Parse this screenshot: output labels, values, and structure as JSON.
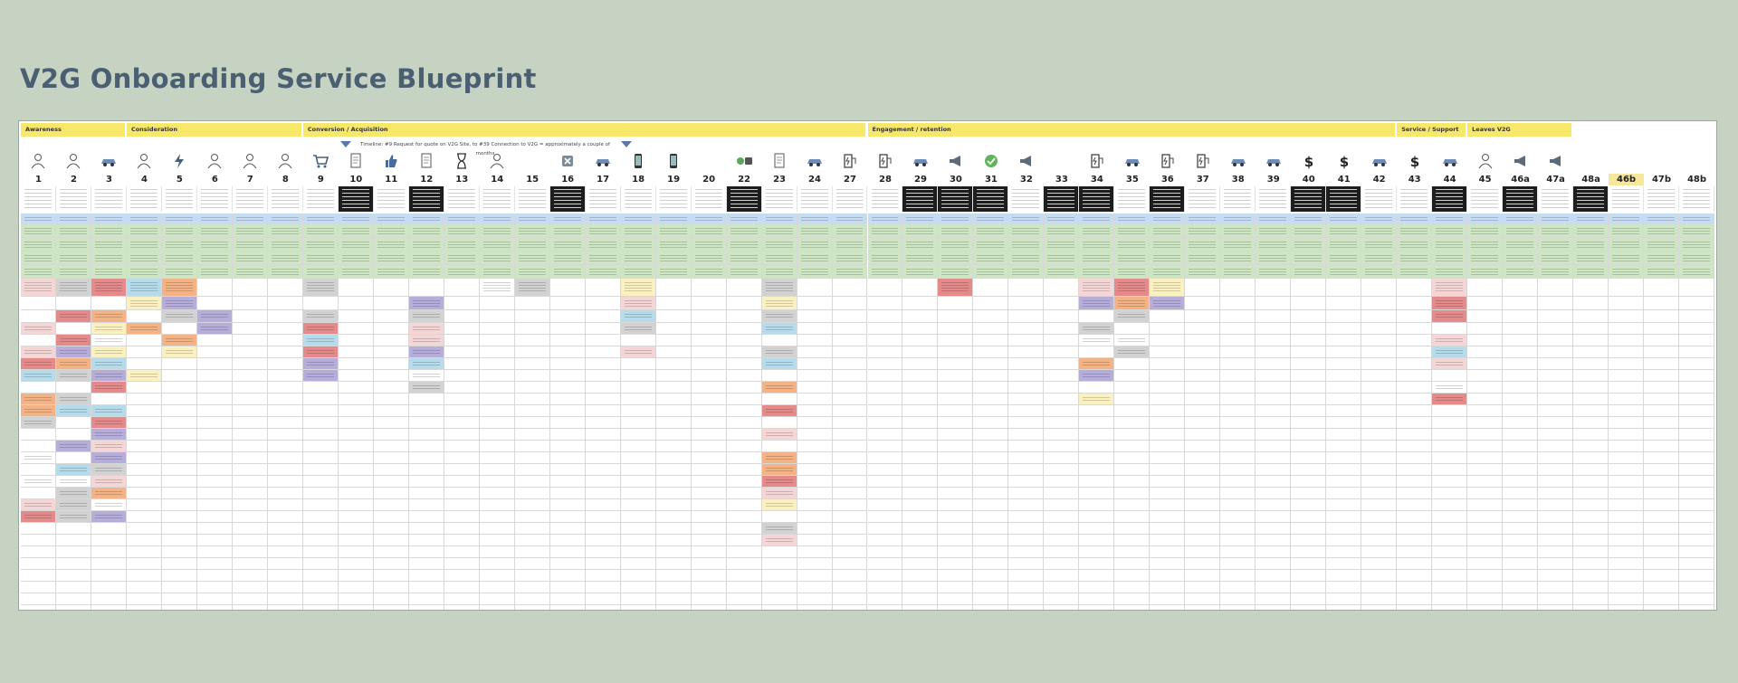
{
  "title": "V2G Onboarding Service Blueprint",
  "phases": [
    {
      "label": "Awareness",
      "start": 0,
      "span": 3
    },
    {
      "label": "Consideration",
      "start": 3,
      "span": 5
    },
    {
      "label": "Conversion / Acquisition",
      "start": 8,
      "span": 16
    },
    {
      "label": "Engagement / retention",
      "start": 24,
      "span": 15
    },
    {
      "label": "Service / Support",
      "start": 39,
      "span": 2
    },
    {
      "label": "Leaves V2G",
      "start": 41,
      "span": 3
    }
  ],
  "timeline": "Timeline: #9 Request for quote on V2G Site, to #39 Connection to V2G = approximately a couple of months",
  "steps": [
    "1",
    "2",
    "3",
    "4",
    "5",
    "6",
    "7",
    "8",
    "9",
    "10",
    "11",
    "12",
    "13",
    "14",
    "15",
    "16",
    "17",
    "18",
    "19",
    "20",
    "22",
    "23",
    "24",
    "27",
    "28",
    "29",
    "30",
    "31",
    "32",
    "33",
    "34",
    "35",
    "36",
    "37",
    "38",
    "39",
    "40",
    "41",
    "42",
    "43",
    "44",
    "45",
    "46a",
    "47a",
    "48a",
    "46b",
    "47b",
    "48b"
  ],
  "icons": [
    "person-icon",
    "person-icon",
    "car-icon",
    "person-icon",
    "lightning-icon",
    "person-icon",
    "person-icon",
    "person-icon",
    "cart-icon",
    "document-icon",
    "thumbs-up-icon",
    "document-icon",
    "hourglass-icon",
    "person-icon",
    "blank",
    "close-badge-icon",
    "car-icon",
    "phone-icon",
    "phone-icon",
    "blank",
    "id-badge-icon",
    "document-icon",
    "car-icon",
    "charger-icon",
    "charger-icon",
    "car-icon",
    "megaphone-icon",
    "check-icon",
    "megaphone-icon",
    "blank",
    "charger-icon",
    "car-icon",
    "charger-icon",
    "charger-icon",
    "car-icon",
    "car-icon",
    "dollar-icon",
    "dollar-icon",
    "car-icon",
    "dollar-icon",
    "car-icon",
    "person-icon",
    "megaphone-icon",
    "megaphone-icon",
    "blank",
    "blank",
    "blank",
    "blank"
  ],
  "colors": {
    "background": "#c7d3c2",
    "title": "#4a6072",
    "phase": "#f7e86b",
    "row_blue": "#c6dcf2",
    "row_green": "#cfe6c4",
    "note_purple": "#b7addb",
    "note_orange": "#f4b384",
    "note_red": "#e58a8a",
    "note_grey": "#d2d2d2",
    "note_pink": "#f4d6d6",
    "note_lightblue": "#b6dcec",
    "note_yellow": "#fbf1c0",
    "dark": "#1d1d1d"
  }
}
